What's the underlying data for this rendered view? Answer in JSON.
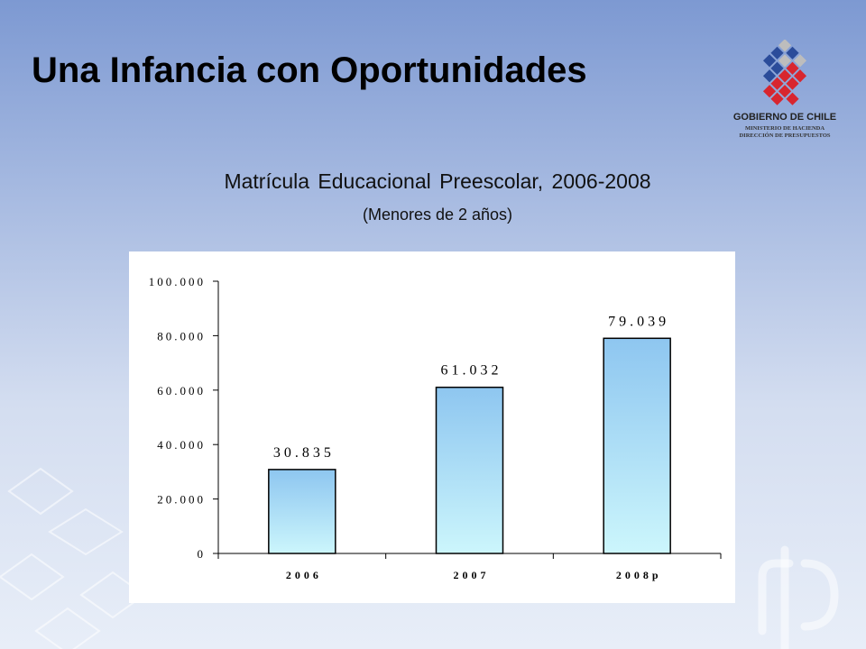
{
  "slide": {
    "title": "Una Infancia con Oportunidades"
  },
  "logo": {
    "name": "GOBIERNO DE CHILE",
    "line1": "MINISTERIO DE HACIENDA",
    "line2": "DIRECCIÓN DE PRESUPUESTOS",
    "colors": [
      "#2b4c9a",
      "#d8262f",
      "#bdbdbd"
    ]
  },
  "colors": {
    "bar_fill_top": "#8ec6f0",
    "bar_fill_bottom": "#ccf6fc",
    "bar_stroke": "#000000"
  },
  "chart_data": {
    "type": "bar",
    "title": "Matrícula Educacional Preescolar, 2006-2008",
    "subtitle": "(Menores de 2 años)",
    "categories": [
      "2006",
      "2007",
      "2008p"
    ],
    "values": [
      30835,
      61032,
      79039
    ],
    "data_labels": [
      "30.835",
      "61.032",
      "79.039"
    ],
    "ylim": [
      0,
      100000
    ],
    "yticks": [
      0,
      20000,
      40000,
      60000,
      80000,
      100000
    ],
    "ytick_labels": [
      "0",
      "20.000",
      "40.000",
      "60.000",
      "80.000",
      "100.000"
    ],
    "xlabel": "",
    "ylabel": "",
    "grid": false,
    "legend": "none"
  }
}
